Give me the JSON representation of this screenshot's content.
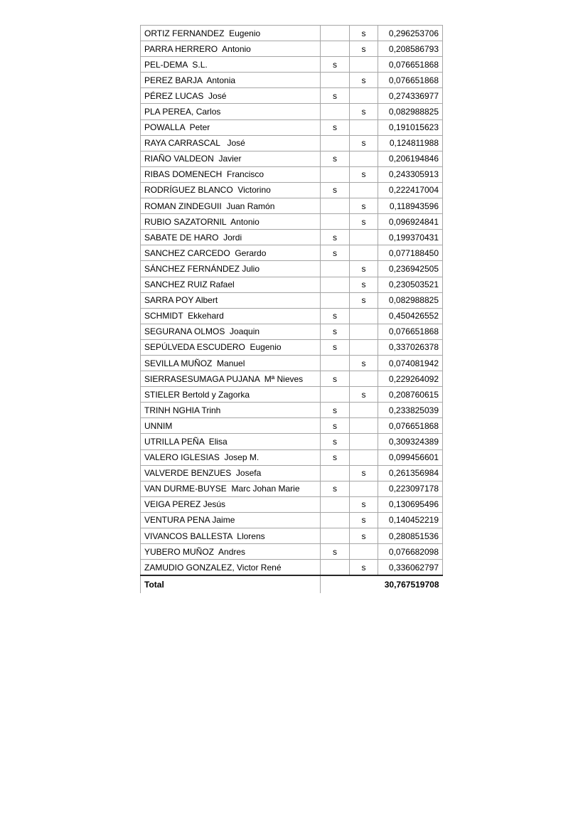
{
  "colors": {
    "page_background": "#ffffff",
    "grid_border": "#a6a6a6",
    "total_top_border": "#262626",
    "text": "#000000"
  },
  "table": {
    "rows": [
      {
        "name": "ORTIZ FERNANDEZ  Eugenio",
        "s1": "",
        "s2": "s",
        "value": "0,296253706"
      },
      {
        "name": "PARRA HERRERO  Antonio",
        "s1": "",
        "s2": "s",
        "value": "0,208586793"
      },
      {
        "name": "PEL-DEMA  S.L.",
        "s1": "s",
        "s2": "",
        "value": "0,076651868"
      },
      {
        "name": "PEREZ BARJA  Antonia",
        "s1": "",
        "s2": "s",
        "value": "0,076651868"
      },
      {
        "name": "PÉREZ LUCAS  José",
        "s1": "s",
        "s2": "",
        "value": "0,274336977"
      },
      {
        "name": "PLA PEREA, Carlos",
        "s1": "",
        "s2": "s",
        "value": "0,082988825"
      },
      {
        "name": "POWALLA  Peter",
        "s1": "s",
        "s2": "",
        "value": "0,191015623"
      },
      {
        "name": "RAYA CARRASCAL   José",
        "s1": "",
        "s2": "s",
        "value": "0,124811988"
      },
      {
        "name": "RIAÑO VALDEON  Javier",
        "s1": "s",
        "s2": "",
        "value": "0,206194846"
      },
      {
        "name": "RIBAS DOMENECH  Francisco",
        "s1": "",
        "s2": "s",
        "value": "0,243305913"
      },
      {
        "name": "RODRÍGUEZ BLANCO  Victorino",
        "s1": "s",
        "s2": "",
        "value": "0,222417004"
      },
      {
        "name": "ROMAN ZINDEGUII  Juan Ramón",
        "s1": "",
        "s2": "s",
        "value": "0,118943596"
      },
      {
        "name": "RUBIO SAZATORNIL  Antonio",
        "s1": "",
        "s2": "s",
        "value": "0,096924841"
      },
      {
        "name": "SABATE DE HARO  Jordi",
        "s1": "s",
        "s2": "",
        "value": "0,199370431"
      },
      {
        "name": "SANCHEZ CARCEDO  Gerardo",
        "s1": "s",
        "s2": "",
        "value": "0,077188450"
      },
      {
        "name": "SÁNCHEZ FERNÁNDEZ Julio",
        "s1": "",
        "s2": "s",
        "value": "0,236942505"
      },
      {
        "name": "SANCHEZ RUIZ Rafael",
        "s1": "",
        "s2": "s",
        "value": "0,230503521"
      },
      {
        "name": "SARRA POY Albert",
        "s1": "",
        "s2": "s",
        "value": "0,082988825"
      },
      {
        "name": "SCHMIDT  Ekkehard",
        "s1": "s",
        "s2": "",
        "value": "0,450426552"
      },
      {
        "name": "SEGURANA OLMOS  Joaquin",
        "s1": "s",
        "s2": "",
        "value": "0,076651868"
      },
      {
        "name": "SEPÚLVEDA ESCUDERO  Eugenio",
        "s1": "s",
        "s2": "",
        "value": "0,337026378"
      },
      {
        "name": "SEVILLA MUÑOZ  Manuel",
        "s1": "",
        "s2": "s",
        "value": "0,074081942"
      },
      {
        "name": "SIERRASESUMAGA PUJANA  Mª Nieves",
        "s1": "s",
        "s2": "",
        "value": "0,229264092"
      },
      {
        "name": "STIELER Bertold y Zagorka",
        "s1": "",
        "s2": "s",
        "value": "0,208760615"
      },
      {
        "name": "TRINH NGHIA Trinh",
        "s1": "s",
        "s2": "",
        "value": "0,233825039"
      },
      {
        "name": "UNNIM",
        "s1": "s",
        "s2": "",
        "value": "0,076651868"
      },
      {
        "name": "UTRILLA PEÑA  Elisa",
        "s1": "s",
        "s2": "",
        "value": "0,309324389"
      },
      {
        "name": "VALERO IGLESIAS  Josep M.",
        "s1": "s",
        "s2": "",
        "value": "0,099456601"
      },
      {
        "name": "VALVERDE BENZUES  Josefa",
        "s1": "",
        "s2": "s",
        "value": "0,261356984"
      },
      {
        "name": "VAN DURME-BUYSE  Marc Johan Marie",
        "s1": "s",
        "s2": "",
        "value": "0,223097178"
      },
      {
        "name": "VEIGA PEREZ Jesús",
        "s1": "",
        "s2": "s",
        "value": "0,130695496"
      },
      {
        "name": "VENTURA PENA Jaime",
        "s1": "",
        "s2": "s",
        "value": "0,140452219"
      },
      {
        "name": "VIVANCOS BALLESTA  Llorens",
        "s1": "",
        "s2": "s",
        "value": "0,280851536"
      },
      {
        "name": "YUBERO MUÑOZ  Andres",
        "s1": "s",
        "s2": "",
        "value": "0,076682098"
      },
      {
        "name": "ZAMUDIO GONZALEZ, Victor René",
        "s1": "",
        "s2": "s",
        "value": "0,336062797"
      }
    ],
    "total": {
      "label": "Total",
      "value": "30,767519708"
    }
  }
}
